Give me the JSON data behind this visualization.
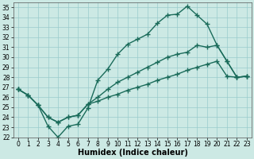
{
  "xlabel": "Humidex (Indice chaleur)",
  "xlim": [
    -0.5,
    23.5
  ],
  "ylim": [
    22,
    35.5
  ],
  "xticks": [
    0,
    1,
    2,
    3,
    4,
    5,
    6,
    7,
    8,
    9,
    10,
    11,
    12,
    13,
    14,
    15,
    16,
    17,
    18,
    19,
    20,
    21,
    22,
    23
  ],
  "yticks": [
    22,
    23,
    24,
    25,
    26,
    27,
    28,
    29,
    30,
    31,
    32,
    33,
    34,
    35
  ],
  "bg_color": "#cce9e4",
  "grid_color": "#99cccc",
  "line_color": "#1a6b5a",
  "line1_x": [
    0,
    1,
    2,
    3,
    4,
    5,
    6,
    7,
    8,
    9,
    10,
    11,
    12,
    13,
    14,
    15,
    16,
    17,
    18,
    19,
    20,
    21,
    22,
    23
  ],
  "line1_y": [
    26.8,
    26.2,
    25.2,
    23.1,
    22.0,
    23.1,
    23.3,
    24.9,
    27.7,
    28.8,
    30.3,
    31.3,
    31.8,
    32.3,
    33.4,
    34.2,
    34.3,
    35.1,
    34.2,
    33.3,
    31.2,
    29.6,
    28.0,
    28.1
  ],
  "line2_x": [
    0,
    1,
    2,
    3,
    4,
    5,
    6,
    7,
    8,
    9,
    10,
    11,
    12,
    13,
    14,
    15,
    16,
    17,
    18,
    19,
    20,
    21,
    22,
    23
  ],
  "line2_y": [
    26.8,
    26.2,
    25.2,
    24.0,
    23.5,
    24.0,
    24.2,
    25.3,
    26.0,
    26.8,
    27.5,
    28.0,
    28.5,
    29.0,
    29.5,
    30.0,
    30.3,
    30.5,
    31.2,
    31.0,
    31.2,
    29.6,
    28.0,
    28.1
  ],
  "line3_x": [
    0,
    1,
    2,
    3,
    4,
    5,
    6,
    7,
    8,
    9,
    10,
    11,
    12,
    13,
    14,
    15,
    16,
    17,
    18,
    19,
    20,
    21,
    22,
    23
  ],
  "line3_y": [
    26.8,
    26.2,
    25.2,
    24.0,
    23.5,
    24.0,
    24.2,
    25.3,
    25.6,
    26.0,
    26.3,
    26.7,
    27.0,
    27.3,
    27.7,
    28.0,
    28.3,
    28.7,
    29.0,
    29.3,
    29.6,
    28.1,
    28.0,
    28.1
  ],
  "marker": "+",
  "markersize": 4,
  "linewidth": 1.0,
  "tick_fontsize": 5.5,
  "label_fontsize": 7
}
